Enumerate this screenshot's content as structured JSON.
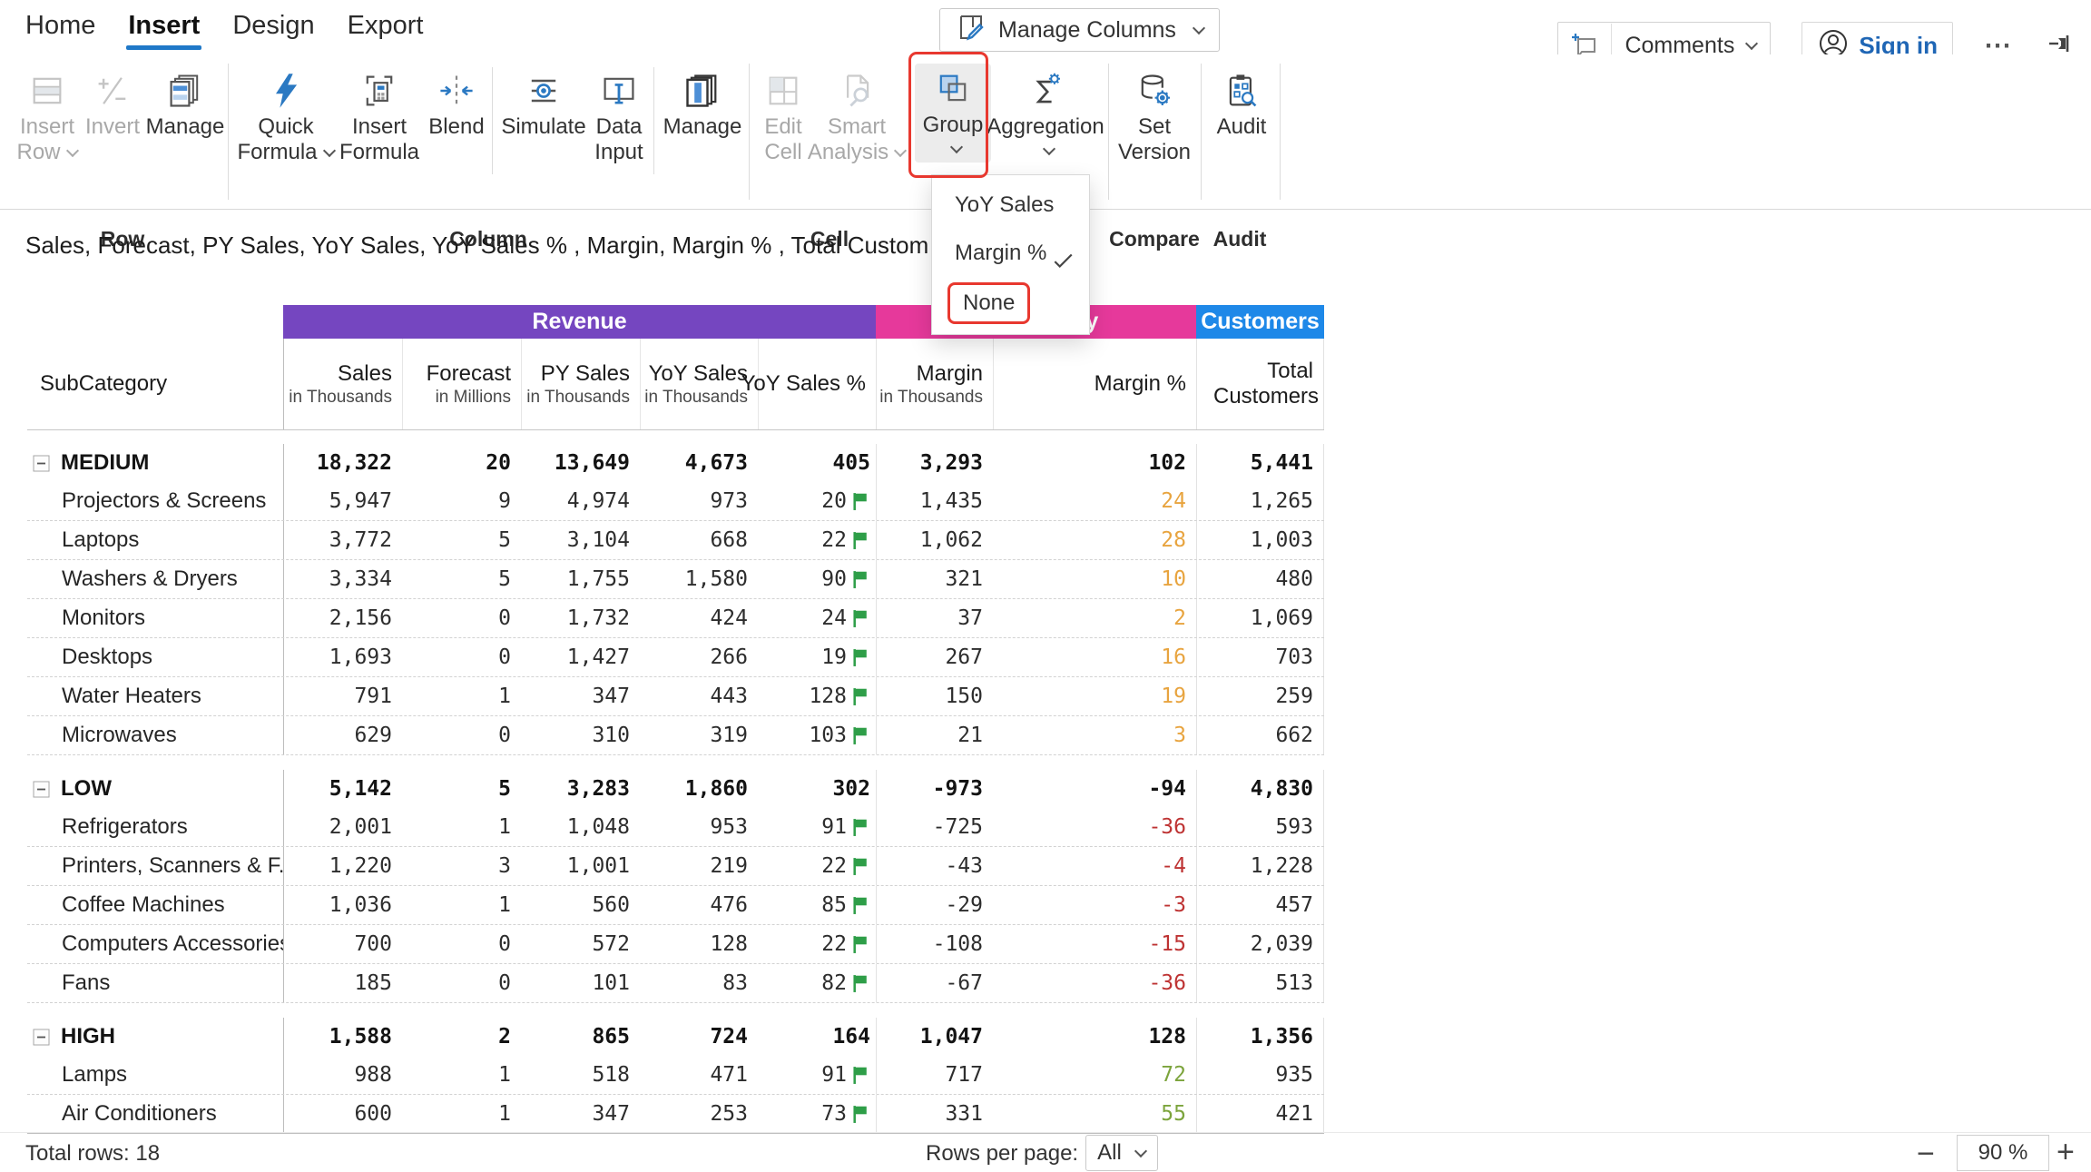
{
  "nav": {
    "tabs": [
      {
        "label": "Home",
        "active": false
      },
      {
        "label": "Insert",
        "active": true
      },
      {
        "label": "Design",
        "active": false
      },
      {
        "label": "Export",
        "active": false
      }
    ]
  },
  "topbar": {
    "manage_columns": "Manage Columns",
    "comments": "Comments",
    "sign_in": "Sign in",
    "ellipsis": "⋯"
  },
  "ribbon": {
    "group_labels": {
      "row": "Row",
      "column": "Column",
      "cell": "Cell",
      "compare": "Compare",
      "audit": "Audit"
    },
    "buttons": {
      "insert_row": {
        "line1": "Insert",
        "line2": "Row"
      },
      "invert": {
        "line1": "Invert"
      },
      "manage_row": {
        "line1": "Manage"
      },
      "quick_formula": {
        "line1": "Quick",
        "line2": "Formula"
      },
      "insert_formula": {
        "line1": "Insert",
        "line2": "Formula"
      },
      "blend": {
        "line1": "Blend"
      },
      "simulate": {
        "line1": "Simulate"
      },
      "data_input": {
        "line1": "Data",
        "line2": "Input"
      },
      "manage_cell": {
        "line1": "Manage"
      },
      "edit_cell": {
        "line1": "Edit",
        "line2": "Cell"
      },
      "smart_analysis": {
        "line1": "Smart",
        "line2": "Analysis"
      },
      "group": {
        "line1": "Group"
      },
      "aggregation": {
        "line1": "Aggregation"
      },
      "set_version": {
        "line1": "Set",
        "line2": "Version"
      },
      "audit": {
        "line1": "Audit"
      }
    }
  },
  "dropdown": {
    "items": [
      {
        "label": "YoY Sales",
        "checked": false,
        "highlighted": false
      },
      {
        "label": "Margin %",
        "checked": true,
        "highlighted": false
      },
      {
        "label": "None",
        "checked": false,
        "highlighted": true
      }
    ]
  },
  "title": "Sales, Forecast, PY Sales, YoY Sales, YoY Sales % , Margin, Margin % , Total Customers by SubCategory",
  "table": {
    "row_header": "SubCategory",
    "band_groups": [
      {
        "label": "Revenue",
        "color": "#7546C0"
      },
      {
        "label": "Profitability",
        "color": "#E6399B"
      },
      {
        "label": "Customers",
        "color": "#1E88E8"
      }
    ],
    "columns": [
      {
        "label": "Sales",
        "sub": "in Thousands"
      },
      {
        "label": "Forecast",
        "sub": "in Millions"
      },
      {
        "label": "PY Sales",
        "sub": "in Thousands"
      },
      {
        "label": "YoY Sales",
        "sub": "in Thousands"
      },
      {
        "label": "YoY Sales %",
        "sub": ""
      },
      {
        "label": "Margin",
        "sub": "in Thousands"
      },
      {
        "label": "Margin %",
        "sub": ""
      },
      {
        "label": "Total Customers",
        "sub": ""
      }
    ],
    "groups": [
      {
        "name": "MEDIUM",
        "detail_margin_pct_color": "#E8A43F",
        "total": {
          "sales": "18,322",
          "forecast": "20",
          "py_sales": "13,649",
          "yoy_sales": "4,673",
          "yoy_pct": "405",
          "margin": "3,293",
          "margin_pct": "102",
          "customers": "5,441"
        },
        "rows": [
          {
            "label": "Projectors & Screens",
            "sales": "5,947",
            "forecast": "9",
            "py_sales": "4,974",
            "yoy_sales": "973",
            "yoy_pct": "20",
            "margin": "1,435",
            "margin_pct": "24",
            "customers": "1,265"
          },
          {
            "label": "Laptops",
            "sales": "3,772",
            "forecast": "5",
            "py_sales": "3,104",
            "yoy_sales": "668",
            "yoy_pct": "22",
            "margin": "1,062",
            "margin_pct": "28",
            "customers": "1,003"
          },
          {
            "label": "Washers & Dryers",
            "sales": "3,334",
            "forecast": "5",
            "py_sales": "1,755",
            "yoy_sales": "1,580",
            "yoy_pct": "90",
            "margin": "321",
            "margin_pct": "10",
            "customers": "480"
          },
          {
            "label": "Monitors",
            "sales": "2,156",
            "forecast": "0",
            "py_sales": "1,732",
            "yoy_sales": "424",
            "yoy_pct": "24",
            "margin": "37",
            "margin_pct": "2",
            "customers": "1,069"
          },
          {
            "label": "Desktops",
            "sales": "1,693",
            "forecast": "0",
            "py_sales": "1,427",
            "yoy_sales": "266",
            "yoy_pct": "19",
            "margin": "267",
            "margin_pct": "16",
            "customers": "703"
          },
          {
            "label": "Water Heaters",
            "sales": "791",
            "forecast": "1",
            "py_sales": "347",
            "yoy_sales": "443",
            "yoy_pct": "128",
            "margin": "150",
            "margin_pct": "19",
            "customers": "259"
          },
          {
            "label": "Microwaves",
            "sales": "629",
            "forecast": "0",
            "py_sales": "310",
            "yoy_sales": "319",
            "yoy_pct": "103",
            "margin": "21",
            "margin_pct": "3",
            "customers": "662"
          }
        ]
      },
      {
        "name": "LOW",
        "detail_margin_pct_color": "#BE3333",
        "total": {
          "sales": "5,142",
          "forecast": "5",
          "py_sales": "3,283",
          "yoy_sales": "1,860",
          "yoy_pct": "302",
          "margin": "-973",
          "margin_pct": "-94",
          "customers": "4,830"
        },
        "rows": [
          {
            "label": "Refrigerators",
            "sales": "2,001",
            "forecast": "1",
            "py_sales": "1,048",
            "yoy_sales": "953",
            "yoy_pct": "91",
            "margin": "-725",
            "margin_pct": "-36",
            "customers": "593"
          },
          {
            "label": "Printers, Scanners & F...",
            "sales": "1,220",
            "forecast": "3",
            "py_sales": "1,001",
            "yoy_sales": "219",
            "yoy_pct": "22",
            "margin": "-43",
            "margin_pct": "-4",
            "customers": "1,228"
          },
          {
            "label": "Coffee Machines",
            "sales": "1,036",
            "forecast": "1",
            "py_sales": "560",
            "yoy_sales": "476",
            "yoy_pct": "85",
            "margin": "-29",
            "margin_pct": "-3",
            "customers": "457"
          },
          {
            "label": "Computers Accessories",
            "sales": "700",
            "forecast": "0",
            "py_sales": "572",
            "yoy_sales": "128",
            "yoy_pct": "22",
            "margin": "-108",
            "margin_pct": "-15",
            "customers": "2,039"
          },
          {
            "label": "Fans",
            "sales": "185",
            "forecast": "0",
            "py_sales": "101",
            "yoy_sales": "83",
            "yoy_pct": "82",
            "margin": "-67",
            "margin_pct": "-36",
            "customers": "513"
          }
        ]
      },
      {
        "name": "HIGH",
        "detail_margin_pct_color": "#7CA43C",
        "total": {
          "sales": "1,588",
          "forecast": "2",
          "py_sales": "865",
          "yoy_sales": "724",
          "yoy_pct": "164",
          "margin": "1,047",
          "margin_pct": "128",
          "customers": "1,356"
        },
        "rows": [
          {
            "label": "Lamps",
            "sales": "988",
            "forecast": "1",
            "py_sales": "518",
            "yoy_sales": "471",
            "yoy_pct": "91",
            "margin": "717",
            "margin_pct": "72",
            "customers": "935"
          },
          {
            "label": "Air Conditioners",
            "sales": "600",
            "forecast": "1",
            "py_sales": "347",
            "yoy_sales": "253",
            "yoy_pct": "73",
            "margin": "331",
            "margin_pct": "55",
            "customers": "421"
          }
        ]
      }
    ]
  },
  "footer": {
    "total_rows": "Total rows: 18",
    "rows_per_page_label": "Rows per page:",
    "rows_per_page_value": "All",
    "zoom_out": "−",
    "zoom_value": "90 %",
    "zoom_in": "+"
  },
  "colors": {
    "accent_blue": "#1F78C8",
    "band_revenue": "#7546C0",
    "band_profitability": "#E6399B",
    "band_customers": "#1E88E8",
    "flag_green": "#2E9E48",
    "margin_pct_positive_low": "#E8A43F",
    "margin_pct_negative": "#BE3333",
    "margin_pct_positive_high": "#7CA43C",
    "annotation_red": "#E8382F"
  }
}
